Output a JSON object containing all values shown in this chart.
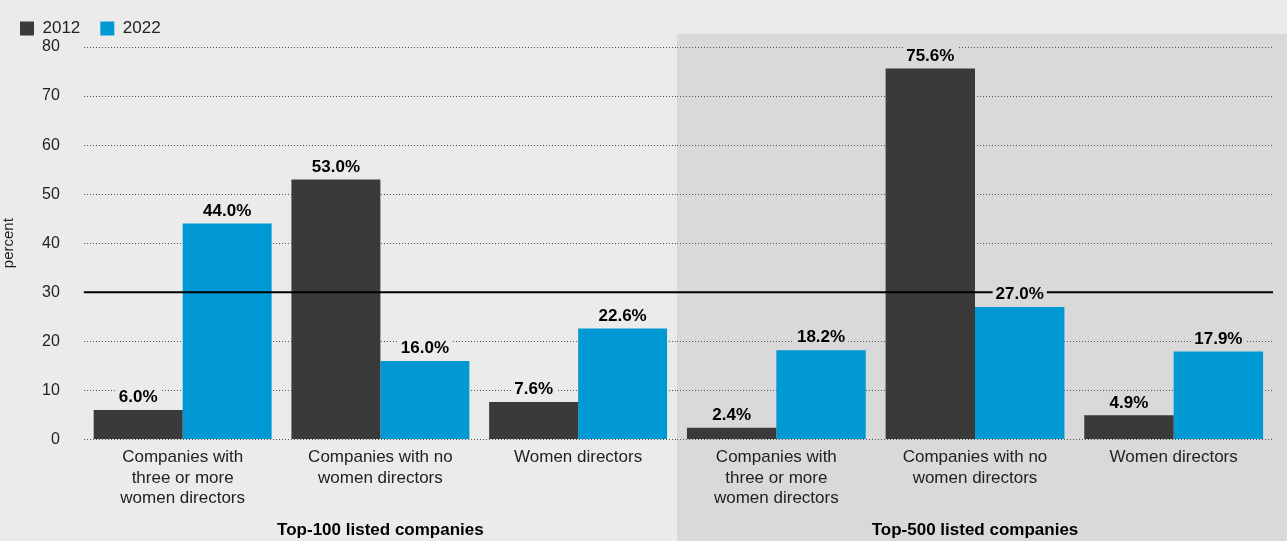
{
  "chart_data": [
    {
      "type": "bar",
      "ylabel": "percent",
      "xlabel": "Top-100 listed companies",
      "categories": [
        "Companies with three or more women directors",
        "Companies with no women directors",
        "Women directors"
      ],
      "series": [
        {
          "name": "2012",
          "color": "#3a3a3a",
          "values": [
            6.0,
            53.0,
            7.6
          ],
          "value_labels": [
            "6.0%",
            "53.0%",
            "7.6%"
          ]
        },
        {
          "name": "2022",
          "color": "#0099d4",
          "values": [
            44.0,
            16.0,
            22.6
          ],
          "value_labels": [
            "44.0%",
            "16.0%",
            "22.6%"
          ]
        }
      ],
      "ylim": [
        0,
        80
      ],
      "yticks": [
        0,
        10,
        20,
        30,
        40,
        50,
        60,
        70,
        80
      ],
      "grid": "y",
      "legend": "top left",
      "ref_lines": [
        {
          "axis": "y",
          "value": 30,
          "color": "#000000"
        }
      ]
    },
    {
      "type": "bar",
      "xlabel": "Top-500 listed companies",
      "categories": [
        "Companies with three or more women directors",
        "Companies with no women directors",
        "Women directors"
      ],
      "series": [
        {
          "color": "#3a3a3a",
          "values": [
            2.4,
            75.6,
            4.9
          ],
          "value_labels": [
            "2.4%",
            "75.6%",
            "4.9%"
          ]
        },
        {
          "color": "#0099d4",
          "values": [
            18.2,
            27.0,
            17.9
          ],
          "value_labels": [
            "18.2%",
            "27.0%",
            "17.9%"
          ]
        }
      ],
      "ylim": [
        0,
        80
      ],
      "yticks": [
        0,
        10,
        20,
        30,
        40,
        50,
        60,
        70,
        80
      ],
      "grid": "y",
      "tick_labels": "x",
      "ref_lines": [
        {
          "axis": "y",
          "value": 30,
          "color": "#000000"
        }
      ]
    }
  ]
}
